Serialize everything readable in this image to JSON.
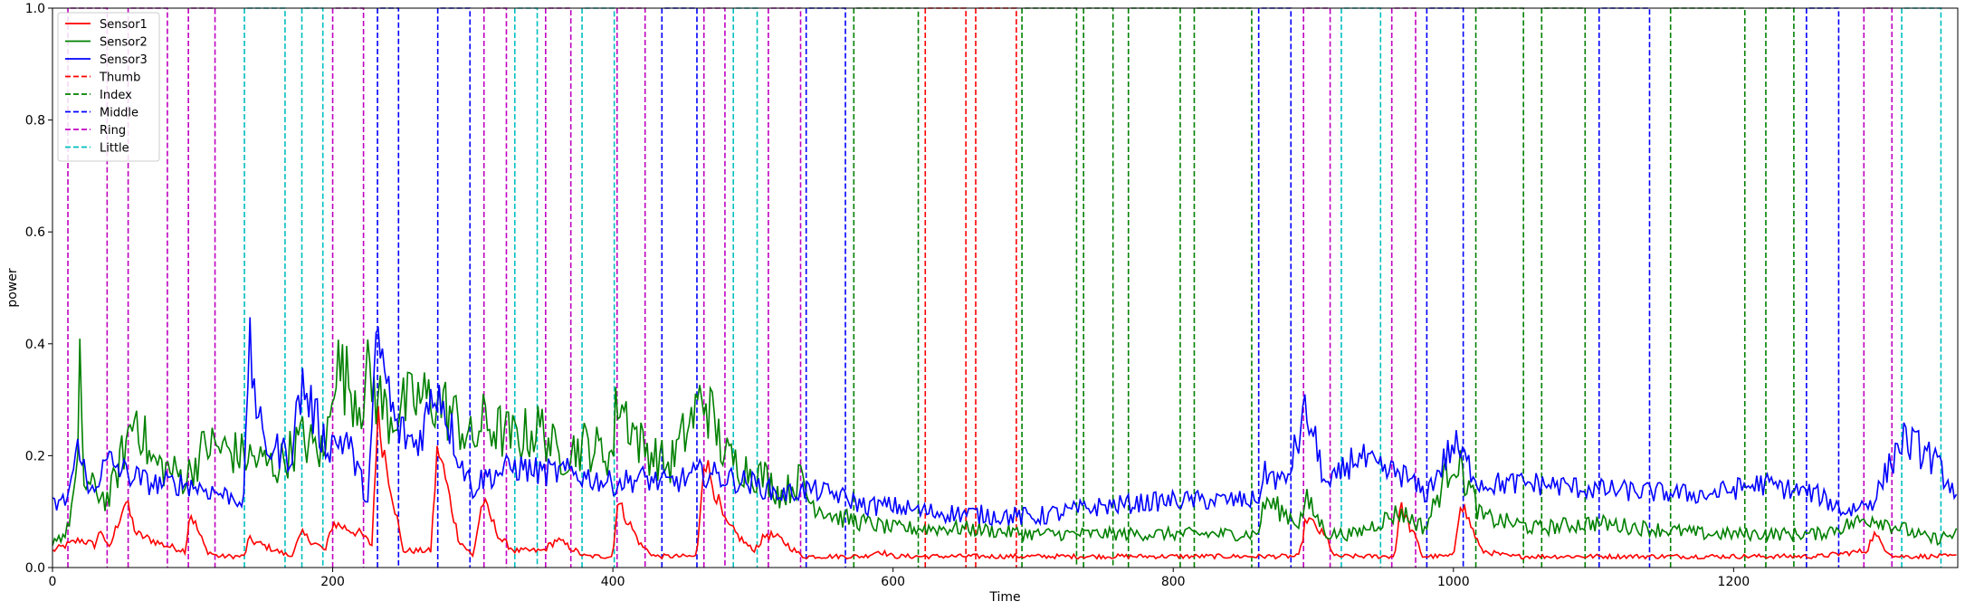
{
  "chart_data": {
    "type": "line",
    "title": "",
    "xlabel": "Time",
    "ylabel": "power",
    "xlim": [
      0,
      1360
    ],
    "ylim": [
      0,
      1.0
    ],
    "x_ticks": [
      0,
      200,
      400,
      600,
      800,
      1000,
      1200
    ],
    "y_ticks": [
      0.0,
      0.2,
      0.4,
      0.6,
      0.8,
      1.0
    ],
    "x_tick_labels": [
      "0",
      "200",
      "400",
      "600",
      "800",
      "1000",
      "1200"
    ],
    "y_tick_labels": [
      "0.0",
      "0.2",
      "0.4",
      "0.6",
      "0.8",
      "1.0"
    ],
    "grid": false,
    "legend_position": "top-left",
    "series": [
      {
        "name": "Sensor1",
        "style": "solid",
        "color": "#ff0000",
        "baseline": 0.018,
        "noise": 0.004,
        "points": [
          [
            0,
            0.03
          ],
          [
            10,
            0.04
          ],
          [
            20,
            0.05
          ],
          [
            30,
            0.04
          ],
          [
            35,
            0.07
          ],
          [
            40,
            0.03
          ],
          [
            52,
            0.12
          ],
          [
            60,
            0.06
          ],
          [
            80,
            0.04
          ],
          [
            95,
            0.03
          ],
          [
            98,
            0.1
          ],
          [
            110,
            0.03
          ],
          [
            118,
            0.02
          ],
          [
            137,
            0.02
          ],
          [
            140,
            0.05
          ],
          [
            160,
            0.03
          ],
          [
            170,
            0.02
          ],
          [
            178,
            0.06
          ],
          [
            195,
            0.03
          ],
          [
            200,
            0.08
          ],
          [
            220,
            0.06
          ],
          [
            228,
            0.04
          ],
          [
            232,
            0.27
          ],
          [
            245,
            0.1
          ],
          [
            250,
            0.03
          ],
          [
            270,
            0.03
          ],
          [
            275,
            0.22
          ],
          [
            290,
            0.05
          ],
          [
            300,
            0.02
          ],
          [
            307,
            0.12
          ],
          [
            320,
            0.05
          ],
          [
            330,
            0.03
          ],
          [
            350,
            0.03
          ],
          [
            360,
            0.05
          ],
          [
            380,
            0.02
          ],
          [
            400,
            0.02
          ],
          [
            403,
            0.12
          ],
          [
            420,
            0.04
          ],
          [
            430,
            0.02
          ],
          [
            460,
            0.02
          ],
          [
            465,
            0.2
          ],
          [
            480,
            0.08
          ],
          [
            500,
            0.03
          ],
          [
            510,
            0.06
          ],
          [
            520,
            0.05
          ],
          [
            535,
            0.02
          ],
          [
            560,
            0.02
          ],
          [
            580,
            0.02
          ],
          [
            590,
            0.03
          ],
          [
            600,
            0.02
          ],
          [
            620,
            0.02
          ],
          [
            700,
            0.02
          ],
          [
            800,
            0.02
          ],
          [
            890,
            0.02
          ],
          [
            895,
            0.09
          ],
          [
            910,
            0.05
          ],
          [
            915,
            0.02
          ],
          [
            940,
            0.02
          ],
          [
            958,
            0.02
          ],
          [
            962,
            0.11
          ],
          [
            975,
            0.04
          ],
          [
            978,
            0.02
          ],
          [
            1000,
            0.02
          ],
          [
            1005,
            0.12
          ],
          [
            1020,
            0.03
          ],
          [
            1040,
            0.02
          ],
          [
            1100,
            0.02
          ],
          [
            1180,
            0.02
          ],
          [
            1200,
            0.02
          ],
          [
            1260,
            0.02
          ],
          [
            1295,
            0.03
          ],
          [
            1300,
            0.06
          ],
          [
            1310,
            0.03
          ],
          [
            1315,
            0.02
          ],
          [
            1360,
            0.02
          ]
        ]
      },
      {
        "name": "Sensor2",
        "style": "solid",
        "color": "#008000",
        "baseline": 0.06,
        "noise": 0.012,
        "points": [
          [
            0,
            0.05
          ],
          [
            10,
            0.06
          ],
          [
            18,
            0.17
          ],
          [
            20,
            0.41
          ],
          [
            22,
            0.15
          ],
          [
            30,
            0.14
          ],
          [
            40,
            0.12
          ],
          [
            52,
            0.22
          ],
          [
            60,
            0.28
          ],
          [
            70,
            0.19
          ],
          [
            95,
            0.16
          ],
          [
            110,
            0.22
          ],
          [
            137,
            0.2
          ],
          [
            160,
            0.18
          ],
          [
            178,
            0.23
          ],
          [
            195,
            0.2
          ],
          [
            200,
            0.37
          ],
          [
            220,
            0.3
          ],
          [
            225,
            0.34
          ],
          [
            240,
            0.27
          ],
          [
            260,
            0.3
          ],
          [
            275,
            0.3
          ],
          [
            290,
            0.26
          ],
          [
            300,
            0.22
          ],
          [
            307,
            0.26
          ],
          [
            330,
            0.23
          ],
          [
            350,
            0.25
          ],
          [
            360,
            0.2
          ],
          [
            380,
            0.22
          ],
          [
            400,
            0.2
          ],
          [
            403,
            0.31
          ],
          [
            420,
            0.22
          ],
          [
            440,
            0.18
          ],
          [
            465,
            0.31
          ],
          [
            480,
            0.2
          ],
          [
            500,
            0.17
          ],
          [
            510,
            0.16
          ],
          [
            520,
            0.13
          ],
          [
            535,
            0.16
          ],
          [
            540,
            0.12
          ],
          [
            560,
            0.09
          ],
          [
            600,
            0.07
          ],
          [
            620,
            0.07
          ],
          [
            650,
            0.07
          ],
          [
            700,
            0.06
          ],
          [
            800,
            0.06
          ],
          [
            860,
            0.06
          ],
          [
            866,
            0.12
          ],
          [
            890,
            0.08
          ],
          [
            895,
            0.12
          ],
          [
            910,
            0.06
          ],
          [
            930,
            0.06
          ],
          [
            962,
            0.1
          ],
          [
            980,
            0.07
          ],
          [
            1000,
            0.2
          ],
          [
            1010,
            0.15
          ],
          [
            1020,
            0.09
          ],
          [
            1060,
            0.07
          ],
          [
            1100,
            0.08
          ],
          [
            1180,
            0.06
          ],
          [
            1260,
            0.06
          ],
          [
            1300,
            0.09
          ],
          [
            1340,
            0.05
          ],
          [
            1360,
            0.06
          ]
        ]
      },
      {
        "name": "Sensor3",
        "style": "solid",
        "color": "#0000ff",
        "baseline": 0.13,
        "noise": 0.018,
        "points": [
          [
            0,
            0.11
          ],
          [
            10,
            0.12
          ],
          [
            20,
            0.23
          ],
          [
            25,
            0.13
          ],
          [
            40,
            0.19
          ],
          [
            52,
            0.17
          ],
          [
            70,
            0.15
          ],
          [
            95,
            0.15
          ],
          [
            137,
            0.12
          ],
          [
            140,
            0.4
          ],
          [
            150,
            0.22
          ],
          [
            170,
            0.2
          ],
          [
            178,
            0.33
          ],
          [
            195,
            0.22
          ],
          [
            210,
            0.23
          ],
          [
            225,
            0.12
          ],
          [
            232,
            0.41
          ],
          [
            245,
            0.25
          ],
          [
            260,
            0.22
          ],
          [
            275,
            0.33
          ],
          [
            290,
            0.2
          ],
          [
            300,
            0.14
          ],
          [
            307,
            0.16
          ],
          [
            330,
            0.18
          ],
          [
            350,
            0.17
          ],
          [
            370,
            0.17
          ],
          [
            400,
            0.15
          ],
          [
            420,
            0.16
          ],
          [
            440,
            0.15
          ],
          [
            465,
            0.17
          ],
          [
            480,
            0.16
          ],
          [
            500,
            0.15
          ],
          [
            520,
            0.13
          ],
          [
            540,
            0.14
          ],
          [
            560,
            0.13
          ],
          [
            580,
            0.11
          ],
          [
            600,
            0.11
          ],
          [
            620,
            0.1
          ],
          [
            700,
            0.09
          ],
          [
            750,
            0.11
          ],
          [
            800,
            0.12
          ],
          [
            860,
            0.12
          ],
          [
            866,
            0.17
          ],
          [
            880,
            0.15
          ],
          [
            895,
            0.28
          ],
          [
            910,
            0.14
          ],
          [
            930,
            0.2
          ],
          [
            950,
            0.17
          ],
          [
            962,
            0.17
          ],
          [
            980,
            0.13
          ],
          [
            1000,
            0.22
          ],
          [
            1020,
            0.15
          ],
          [
            1060,
            0.15
          ],
          [
            1100,
            0.14
          ],
          [
            1180,
            0.13
          ],
          [
            1220,
            0.15
          ],
          [
            1260,
            0.13
          ],
          [
            1280,
            0.1
          ],
          [
            1300,
            0.12
          ],
          [
            1320,
            0.23
          ],
          [
            1340,
            0.2
          ],
          [
            1360,
            0.13
          ]
        ]
      },
      {
        "name": "Thumb",
        "style": "dashed",
        "color": "#ff0000",
        "intervals": [
          [
            623,
            652
          ],
          [
            659,
            688
          ]
        ]
      },
      {
        "name": "Index",
        "style": "dashed",
        "color": "#008000",
        "intervals": [
          [
            572,
            618
          ],
          [
            692,
            731
          ],
          [
            736,
            757
          ],
          [
            768,
            805
          ],
          [
            815,
            856
          ],
          [
            1016,
            1050
          ],
          [
            1063,
            1094
          ],
          [
            1155,
            1208
          ],
          [
            1223,
            1243
          ]
        ]
      },
      {
        "name": "Middle",
        "style": "dashed",
        "color": "#0000ff",
        "intervals": [
          [
            232,
            247
          ],
          [
            275,
            298
          ],
          [
            435,
            460
          ],
          [
            538,
            566
          ],
          [
            861,
            884
          ],
          [
            981,
            1007
          ],
          [
            1104,
            1140
          ],
          [
            1252,
            1275
          ]
        ]
      },
      {
        "name": "Ring",
        "style": "dashed",
        "color": "#c000c0",
        "intervals": [
          [
            11,
            39
          ],
          [
            54,
            82
          ],
          [
            97,
            116
          ],
          [
            200,
            222
          ],
          [
            308,
            324
          ],
          [
            352,
            370
          ],
          [
            403,
            423
          ],
          [
            465,
            480
          ],
          [
            511,
            534
          ],
          [
            893,
            912
          ],
          [
            956,
            973
          ],
          [
            1293,
            1313
          ]
        ]
      },
      {
        "name": "Little",
        "style": "dashed",
        "color": "#00bfbf",
        "intervals": [
          [
            137,
            166
          ],
          [
            178,
            193
          ],
          [
            330,
            346
          ],
          [
            378,
            401
          ],
          [
            486,
            503
          ],
          [
            920,
            948
          ],
          [
            1320,
            1348
          ]
        ]
      }
    ]
  }
}
